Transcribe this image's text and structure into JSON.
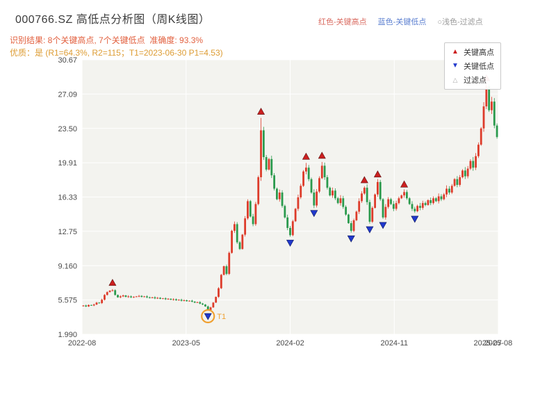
{
  "header": {
    "title": "000766.SZ 高低点分析图（周K线图）",
    "legend_top": {
      "high_label": "红色-关键高点",
      "low_label": "蓝色-关键低点",
      "filter_label": "○浅色-过滤点"
    },
    "result_line": "识别结果: 8个关键高点, 7个关键低点  准确度: 93.3%",
    "quality_line": "优质：是 (R1=64.3%, R2=115；T1=2023-06-30 P1=4.53)"
  },
  "colors": {
    "title_text": "#3c3c3c",
    "legend_high": "#d96a5f",
    "legend_low": "#5b7fd0",
    "legend_filter": "#999999",
    "result_text": "#e2603f",
    "quality_text": "#dd9c33",
    "plot_bg": "#f3f3ef",
    "grid": "#ffffff",
    "tick": "#4a4a4a",
    "candle_up": "#dd3b2a",
    "candle_down": "#2a9a4d",
    "high_marker": "#cc2020",
    "low_marker": "#2038cc",
    "annotation": "#f0a030"
  },
  "legend_box": {
    "items": [
      {
        "glyph": "▲",
        "label": "关键高点",
        "color": "#cc2020"
      },
      {
        "glyph": "▼",
        "label": "关键低点",
        "color": "#2038cc"
      },
      {
        "glyph": "△",
        "label": "过滤点",
        "color": "#aaaaaa"
      }
    ]
  },
  "chart_data": {
    "type": "candlestick",
    "title": "000766.SZ 高低点分析图（周K线图）",
    "ylim": [
      1.99,
      30.67
    ],
    "y_ticks": [
      {
        "v": 30.67,
        "label": "30.67"
      },
      {
        "v": 27.09,
        "label": "27.09"
      },
      {
        "v": 23.5,
        "label": "23.50"
      },
      {
        "v": 19.91,
        "label": "19.91"
      },
      {
        "v": 16.33,
        "label": "16.33"
      },
      {
        "v": 12.75,
        "label": "12.75"
      },
      {
        "v": 9.16,
        "label": "9.160"
      },
      {
        "v": 5.575,
        "label": "5.575"
      },
      {
        "v": 1.99,
        "label": "1.990"
      }
    ],
    "x_ticks": [
      {
        "week": 0,
        "label": "2022-08",
        "grid": true
      },
      {
        "week": 39,
        "label": "2023-05",
        "grid": true
      },
      {
        "week": 78,
        "label": "2024-02",
        "grid": true
      },
      {
        "week": 117,
        "label": "2024-11",
        "grid": true
      },
      {
        "week": 152,
        "label": "2025-07",
        "grid": false
      },
      {
        "week": 156,
        "label": "2025-08",
        "grid": true
      }
    ],
    "closes": [
      5.0,
      4.9,
      5.05,
      5.0,
      5.1,
      5.3,
      5.25,
      5.6,
      6.1,
      6.4,
      6.55,
      6.6,
      6.1,
      5.85,
      5.95,
      6.05,
      5.9,
      5.95,
      5.85,
      5.9,
      5.95,
      6.0,
      5.9,
      5.95,
      5.85,
      5.8,
      5.85,
      5.75,
      5.8,
      5.7,
      5.75,
      5.65,
      5.7,
      5.6,
      5.65,
      5.55,
      5.6,
      5.5,
      5.55,
      5.45,
      5.5,
      5.4,
      5.3,
      5.35,
      5.2,
      5.1,
      4.9,
      4.53,
      4.8,
      5.3,
      5.9,
      6.8,
      8.2,
      9.1,
      8.3,
      10.5,
      12.8,
      13.5,
      11.6,
      10.9,
      12.4,
      14.1,
      15.9,
      14.3,
      13.5,
      15.6,
      18.4,
      23.3,
      20.5,
      19.2,
      20.3,
      18.6,
      17.2,
      16.1,
      16.8,
      15.4,
      14.2,
      13.1,
      12.35,
      13.8,
      15.1,
      16.3,
      17.5,
      19.0,
      19.4,
      18.2,
      16.8,
      15.45,
      16.9,
      18.3,
      19.6,
      18.4,
      17.3,
      16.5,
      17.0,
      16.2,
      15.7,
      16.2,
      15.3,
      14.5,
      13.6,
      12.8,
      13.9,
      14.8,
      15.9,
      16.7,
      17.3,
      15.8,
      13.75,
      15.2,
      16.6,
      17.9,
      16.1,
      14.2,
      15.3,
      16.1,
      15.6,
      15.1,
      15.7,
      16.2,
      16.5,
      16.85,
      16.2,
      15.6,
      15.1,
      14.85,
      15.4,
      15.2,
      15.7,
      15.5,
      16.0,
      15.7,
      16.2,
      15.9,
      16.4,
      16.1,
      16.6,
      17.2,
      16.8,
      17.5,
      18.2,
      17.6,
      18.4,
      19.1,
      18.5,
      19.3,
      20.1,
      19.4,
      20.6,
      21.8,
      23.5,
      25.8,
      27.9,
      25.4,
      26.3,
      23.8,
      22.6
    ],
    "key_highs": [
      {
        "week": 11,
        "price": 6.72
      },
      {
        "week": 67,
        "price": 24.6
      },
      {
        "week": 84,
        "price": 19.9
      },
      {
        "week": 90,
        "price": 20.0
      },
      {
        "week": 106,
        "price": 17.45
      },
      {
        "week": 111,
        "price": 18.05
      },
      {
        "week": 121,
        "price": 17.0
      },
      {
        "week": 152,
        "price": 28.1
      }
    ],
    "key_lows": [
      {
        "week": 47,
        "price": 4.53
      },
      {
        "week": 78,
        "price": 12.2
      },
      {
        "week": 87,
        "price": 15.3
      },
      {
        "week": 101,
        "price": 12.65
      },
      {
        "week": 108,
        "price": 13.6
      },
      {
        "week": 113,
        "price": 14.05
      },
      {
        "week": 125,
        "price": 14.7
      }
    ],
    "t1": {
      "week": 47,
      "price": 4.53,
      "label": "T1"
    }
  }
}
